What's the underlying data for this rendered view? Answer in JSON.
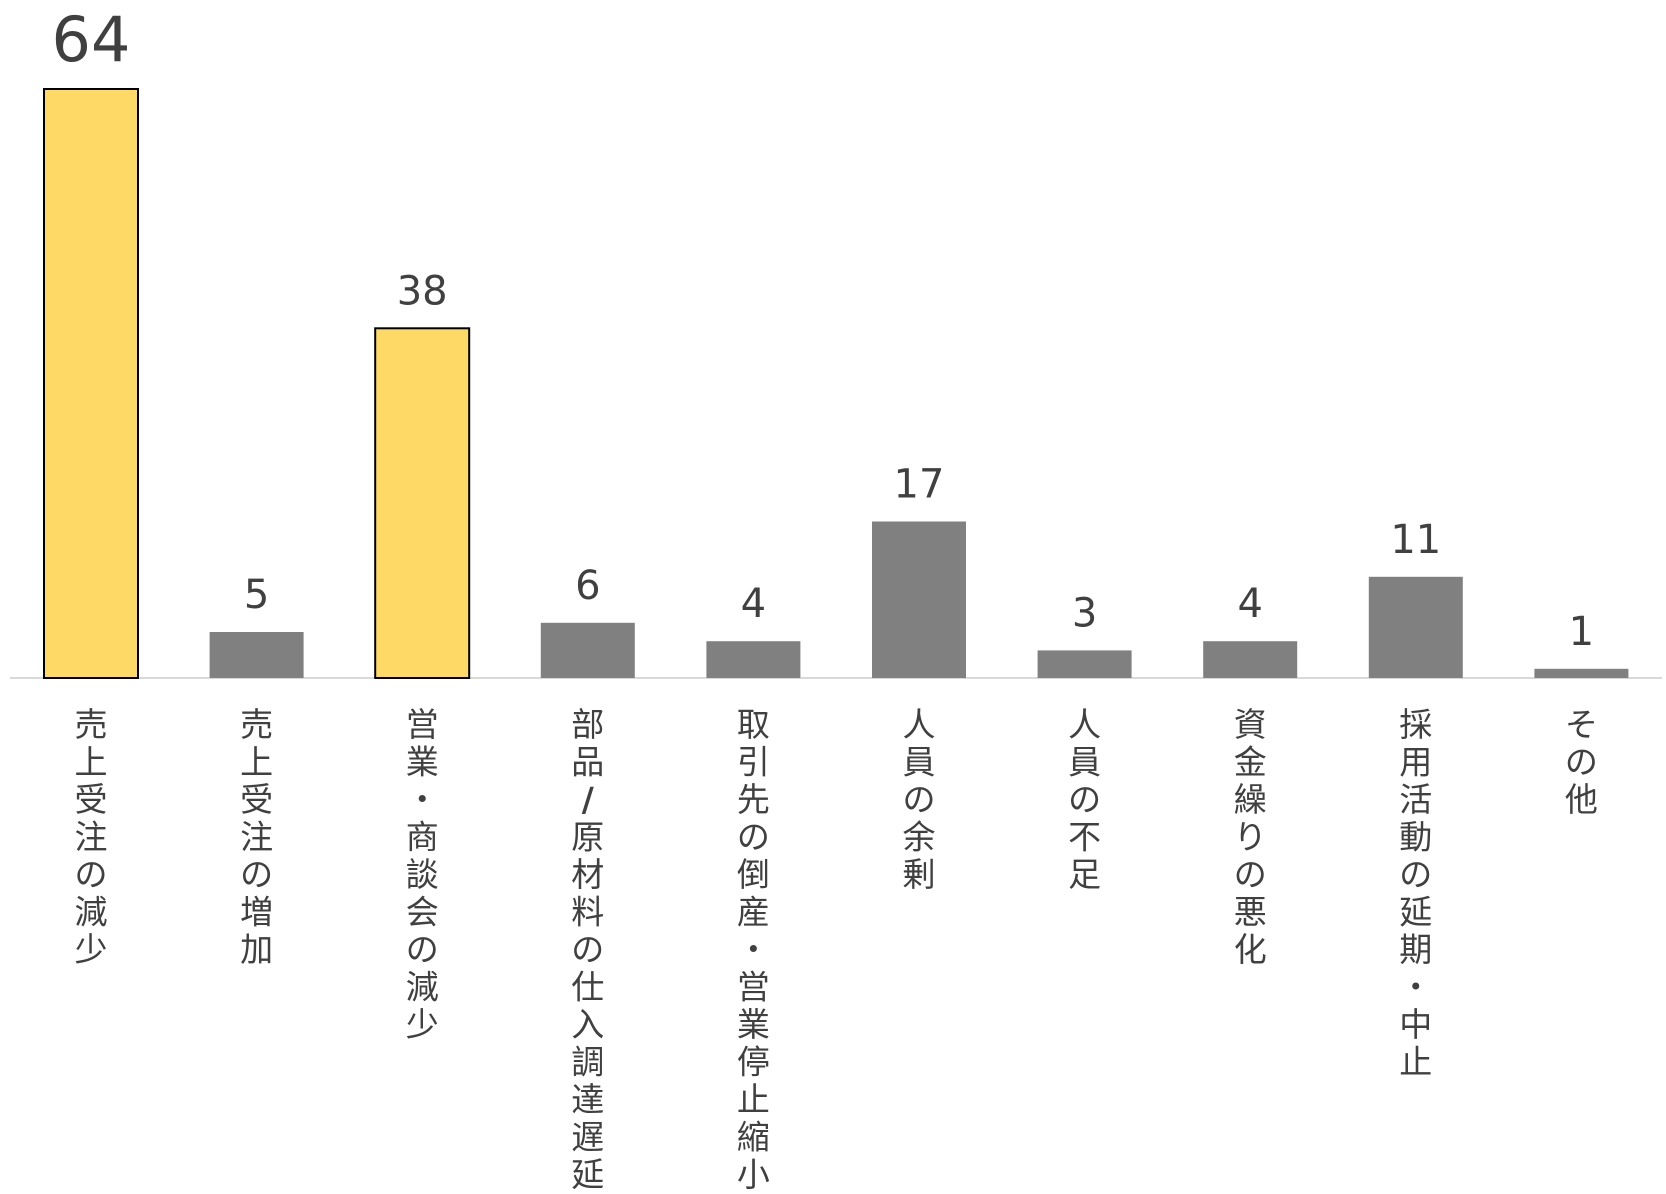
{
  "chart_data": {
    "type": "bar",
    "categories": [
      "売上受注の減少",
      "売上受注の増加",
      "営業・商談会の減少",
      "部品/原材料の仕入調達遅延",
      "取引先の倒産・営業停止縮小",
      "人員の余剰",
      "人員の不足",
      "資金繰りの悪化",
      "採用活動の延期・中止",
      "その他"
    ],
    "values": [
      64,
      5,
      38,
      6,
      4,
      17,
      3,
      4,
      11,
      1
    ],
    "highlighted": [
      true,
      false,
      true,
      false,
      false,
      false,
      false,
      false,
      false,
      false
    ],
    "title": "",
    "xlabel": "",
    "ylabel": "",
    "ylim": [
      0,
      64
    ],
    "grid": false,
    "legend": "none",
    "colors": {
      "highlight": "#FFD966",
      "default": "#808080",
      "highlight_border": "#000000",
      "axis": "#D9D9D9",
      "label_text": "#404040"
    }
  }
}
